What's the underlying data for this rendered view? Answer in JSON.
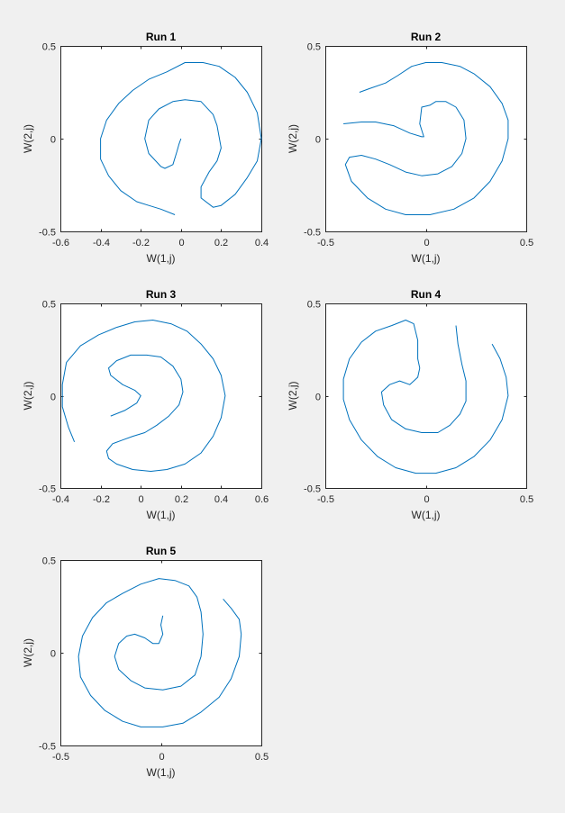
{
  "figure": {
    "background": "#f0f0f0"
  },
  "chart_data": [
    {
      "type": "line",
      "title": "Run 1",
      "xlabel": "W(1,j)",
      "ylabel": "W(2,j)",
      "xlim": [
        -0.6,
        0.4
      ],
      "ylim": [
        -0.5,
        0.5
      ],
      "xticks": [
        -0.6,
        -0.4,
        -0.2,
        0,
        0.2,
        0.4
      ],
      "xtick_labels": [
        "-0.6",
        "-0.4",
        "-0.2",
        "0",
        "0.2",
        "0.4"
      ],
      "yticks": [
        -0.5,
        0,
        0.5
      ],
      "ytick_labels": [
        "-0.5",
        "0",
        "0.5"
      ],
      "color": "#0072bd",
      "series": [
        {
          "x": [
            -0.03,
            -0.1,
            -0.16,
            -0.22,
            -0.3,
            -0.36,
            -0.4,
            -0.4,
            -0.37,
            -0.31,
            -0.24,
            -0.16,
            -0.07,
            0.02,
            0.11,
            0.19,
            0.27,
            0.33,
            0.38,
            0.4,
            0.38,
            0.33,
            0.27,
            0.2,
            0.16,
            0.1,
            0.1,
            0.14,
            0.18,
            0.2,
            0.18,
            0.16,
            0.1,
            0.02,
            -0.04,
            -0.11,
            -0.16,
            -0.18,
            -0.16,
            -0.1,
            -0.08,
            -0.04,
            -0.02,
            -0.01,
            0.0
          ],
          "y": [
            -0.41,
            -0.38,
            -0.36,
            -0.34,
            -0.28,
            -0.2,
            -0.11,
            0.0,
            0.1,
            0.19,
            0.26,
            0.32,
            0.36,
            0.41,
            0.41,
            0.39,
            0.33,
            0.25,
            0.14,
            0.0,
            -0.12,
            -0.21,
            -0.3,
            -0.36,
            -0.37,
            -0.32,
            -0.26,
            -0.18,
            -0.12,
            -0.05,
            0.07,
            0.13,
            0.2,
            0.21,
            0.2,
            0.16,
            0.1,
            0.0,
            -0.08,
            -0.15,
            -0.16,
            -0.14,
            -0.07,
            -0.03,
            0.0
          ]
        }
      ]
    },
    {
      "type": "line",
      "title": "Run 2",
      "xlabel": "W(1,j)",
      "ylabel": "W(2,j)",
      "xlim": [
        -0.5,
        0.5
      ],
      "ylim": [
        -0.5,
        0.5
      ],
      "xticks": [
        -0.5,
        0,
        0.5
      ],
      "xtick_labels": [
        "-0.5",
        "0",
        "0.5"
      ],
      "yticks": [
        -0.5,
        0,
        0.5
      ],
      "ytick_labels": [
        "-0.5",
        "0",
        "0.5"
      ],
      "color": "#0072bd",
      "series": [
        {
          "x": [
            -0.33,
            -0.28,
            -0.2,
            -0.14,
            -0.07,
            0.0,
            0.08,
            0.17,
            0.24,
            0.32,
            0.38,
            0.41,
            0.41,
            0.38,
            0.32,
            0.24,
            0.14,
            0.02,
            -0.1,
            -0.2,
            -0.29,
            -0.37,
            -0.4,
            -0.38,
            -0.32,
            -0.25,
            -0.18,
            -0.1,
            -0.02,
            0.06,
            0.13,
            0.18,
            0.2,
            0.19,
            0.15,
            0.1,
            0.05,
            0.02,
            -0.02,
            -0.03,
            -0.01,
            -0.02,
            -0.08,
            -0.16,
            -0.25,
            -0.32,
            -0.41
          ],
          "y": [
            0.25,
            0.27,
            0.3,
            0.34,
            0.39,
            0.41,
            0.41,
            0.39,
            0.35,
            0.28,
            0.19,
            0.1,
            0.0,
            -0.12,
            -0.23,
            -0.32,
            -0.38,
            -0.41,
            -0.41,
            -0.38,
            -0.32,
            -0.23,
            -0.14,
            -0.1,
            -0.09,
            -0.11,
            -0.14,
            -0.18,
            -0.2,
            -0.19,
            -0.15,
            -0.08,
            0.0,
            0.1,
            0.17,
            0.2,
            0.2,
            0.18,
            0.17,
            0.08,
            0.01,
            0.01,
            0.03,
            0.07,
            0.09,
            0.09,
            0.08
          ]
        }
      ]
    },
    {
      "type": "line",
      "title": "Run 3",
      "xlabel": "W(1,j)",
      "ylabel": "W(2,j)",
      "xlim": [
        -0.4,
        0.6
      ],
      "ylim": [
        -0.5,
        0.5
      ],
      "xticks": [
        -0.4,
        -0.2,
        0,
        0.2,
        0.4,
        0.6
      ],
      "xtick_labels": [
        "-0.4",
        "-0.2",
        "0",
        "0.2",
        "0.4",
        "0.6"
      ],
      "yticks": [
        -0.5,
        0,
        0.5
      ],
      "ytick_labels": [
        "-0.5",
        "0",
        "0.5"
      ],
      "color": "#0072bd",
      "series": [
        {
          "x": [
            -0.33,
            -0.36,
            -0.39,
            -0.39,
            -0.37,
            -0.3,
            -0.21,
            -0.12,
            -0.03,
            0.06,
            0.15,
            0.23,
            0.3,
            0.36,
            0.4,
            0.42,
            0.4,
            0.36,
            0.3,
            0.22,
            0.13,
            0.05,
            -0.04,
            -0.12,
            -0.16,
            -0.17,
            -0.14,
            -0.09,
            -0.04,
            0.02,
            0.08,
            0.14,
            0.19,
            0.21,
            0.2,
            0.16,
            0.1,
            0.03,
            -0.05,
            -0.12,
            -0.16,
            -0.15,
            -0.09,
            -0.03,
            0.0,
            -0.02,
            -0.08,
            -0.15
          ],
          "y": [
            -0.25,
            -0.17,
            -0.06,
            0.06,
            0.18,
            0.27,
            0.33,
            0.37,
            0.4,
            0.41,
            0.39,
            0.35,
            0.28,
            0.2,
            0.11,
            0.0,
            -0.12,
            -0.22,
            -0.31,
            -0.37,
            -0.4,
            -0.41,
            -0.4,
            -0.37,
            -0.34,
            -0.3,
            -0.26,
            -0.24,
            -0.22,
            -0.2,
            -0.16,
            -0.11,
            -0.05,
            0.02,
            0.09,
            0.16,
            0.21,
            0.22,
            0.22,
            0.19,
            0.15,
            0.11,
            0.06,
            0.03,
            0.0,
            -0.04,
            -0.08,
            -0.11
          ]
        }
      ]
    },
    {
      "type": "line",
      "title": "Run 4",
      "xlabel": "W(1,j)",
      "ylabel": "W(2,j)",
      "xlim": [
        -0.5,
        0.5
      ],
      "ylim": [
        -0.5,
        0.5
      ],
      "xticks": [
        -0.5,
        0,
        0.5
      ],
      "xtick_labels": [
        "-0.5",
        "0",
        "0.5"
      ],
      "yticks": [
        -0.5,
        0,
        0.5
      ],
      "ytick_labels": [
        "-0.5",
        "0",
        "0.5"
      ],
      "color": "#0072bd",
      "series": [
        {
          "x": [
            0.33,
            0.37,
            0.4,
            0.41,
            0.38,
            0.32,
            0.24,
            0.15,
            0.05,
            -0.05,
            -0.15,
            -0.24,
            -0.32,
            -0.38,
            -0.41,
            -0.41,
            -0.38,
            -0.32,
            -0.25,
            -0.17,
            -0.1,
            -0.06,
            -0.04,
            -0.04,
            -0.03,
            -0.04,
            -0.08,
            -0.13,
            -0.18,
            -0.22,
            -0.21,
            -0.17,
            -0.1,
            -0.02,
            0.06,
            0.12,
            0.17,
            0.2,
            0.2,
            0.18,
            0.16,
            0.15
          ],
          "y": [
            0.28,
            0.2,
            0.1,
            0.0,
            -0.13,
            -0.24,
            -0.33,
            -0.39,
            -0.42,
            -0.42,
            -0.39,
            -0.33,
            -0.24,
            -0.13,
            -0.02,
            0.09,
            0.2,
            0.29,
            0.35,
            0.38,
            0.41,
            0.39,
            0.3,
            0.2,
            0.15,
            0.1,
            0.06,
            0.08,
            0.06,
            0.02,
            -0.05,
            -0.13,
            -0.18,
            -0.2,
            -0.2,
            -0.16,
            -0.1,
            -0.03,
            0.08,
            0.17,
            0.28,
            0.38
          ]
        }
      ]
    },
    {
      "type": "line",
      "title": "Run 5",
      "xlabel": "W(1,j)",
      "ylabel": "W(2,j)",
      "xlim": [
        -0.5,
        0.5
      ],
      "ylim": [
        -0.5,
        0.5
      ],
      "xticks": [
        -0.5,
        0,
        0.5
      ],
      "xtick_labels": [
        "-0.5",
        "0",
        "0.5"
      ],
      "yticks": [
        -0.5,
        0,
        0.5
      ],
      "ytick_labels": [
        "-0.5",
        "0",
        "0.5"
      ],
      "color": "#0072bd",
      "series": [
        {
          "x": [
            0.31,
            0.35,
            0.39,
            0.4,
            0.39,
            0.35,
            0.29,
            0.2,
            0.11,
            0.01,
            -0.1,
            -0.19,
            -0.28,
            -0.35,
            -0.4,
            -0.41,
            -0.39,
            -0.34,
            -0.27,
            -0.19,
            -0.1,
            -0.01,
            0.07,
            0.14,
            0.18,
            0.2,
            0.21,
            0.2,
            0.17,
            0.1,
            0.01,
            -0.08,
            -0.15,
            -0.21,
            -0.23,
            -0.21,
            -0.17,
            -0.13,
            -0.08,
            -0.04,
            -0.01,
            0.01,
            0.0,
            0.01
          ],
          "y": [
            0.29,
            0.24,
            0.18,
            0.1,
            -0.02,
            -0.14,
            -0.24,
            -0.32,
            -0.38,
            -0.4,
            -0.4,
            -0.37,
            -0.31,
            -0.23,
            -0.13,
            -0.02,
            0.09,
            0.19,
            0.27,
            0.32,
            0.37,
            0.4,
            0.39,
            0.36,
            0.3,
            0.22,
            0.1,
            -0.02,
            -0.12,
            -0.18,
            -0.2,
            -0.19,
            -0.15,
            -0.09,
            -0.02,
            0.05,
            0.09,
            0.1,
            0.08,
            0.05,
            0.05,
            0.1,
            0.15,
            0.2
          ]
        }
      ]
    }
  ]
}
